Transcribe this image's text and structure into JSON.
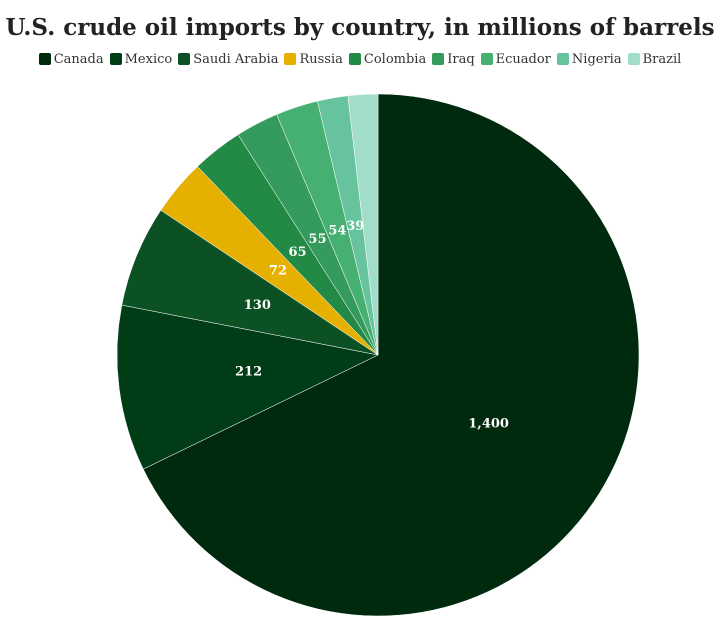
{
  "chart_data": {
    "type": "pie",
    "title": "U.S. crude oil imports by country, in millions of barrels",
    "categories": [
      "Canada",
      "Mexico",
      "Saudi Arabia",
      "Russia",
      "Colombia",
      "Iraq",
      "Ecuador",
      "Nigeria",
      "Brazil"
    ],
    "values": [
      1400,
      212,
      130,
      72,
      65,
      55,
      54,
      39,
      38
    ],
    "value_labels": [
      "1,400",
      "212",
      "130",
      "72",
      "65",
      "55",
      "54",
      "39",
      null
    ],
    "colors": [
      "#002a0e",
      "#003d16",
      "#0b5124",
      "#e6b000",
      "#238a45",
      "#349a5e",
      "#46b072",
      "#66c39e",
      "#a2ddc9"
    ],
    "legend": "top"
  }
}
